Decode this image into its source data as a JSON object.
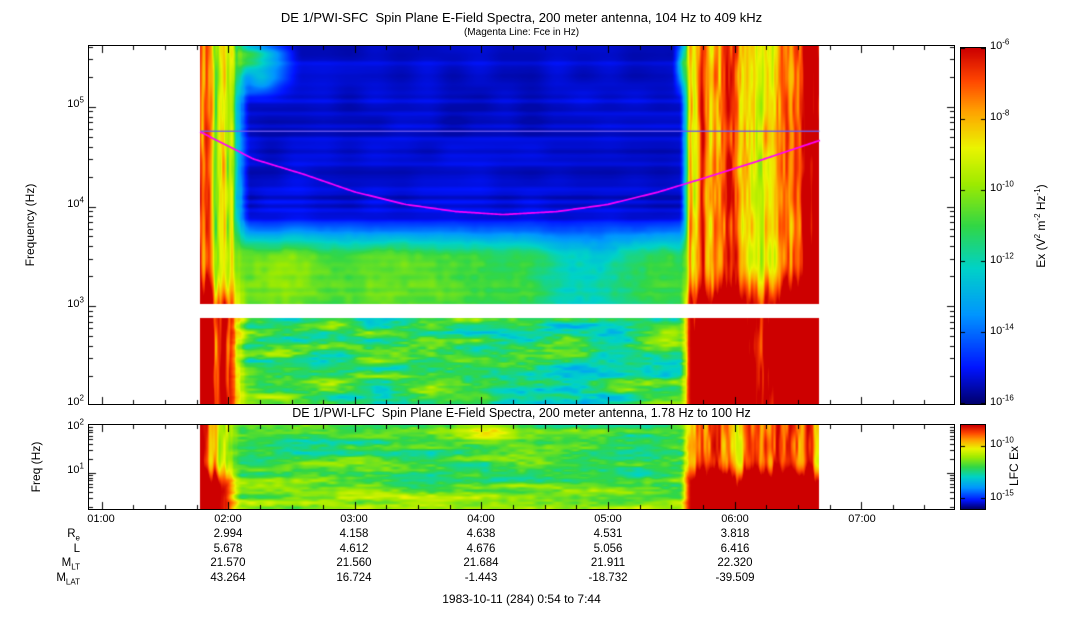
{
  "chart_data": {
    "type": "heatmap",
    "title": "DE 1/PWI-SFC  Spin Plane E-Field Spectra, 200 meter antenna, 104 Hz to 409 kHz",
    "subtitle": "(Magenta Line: Fce in Hz)",
    "footer": "1983-10-11 (284) 0:54 to 7:44",
    "time_axis": {
      "start": "0:54",
      "end": "7:44",
      "start_hours": 0.9,
      "end_hours": 7.7333,
      "data_start_hours": 1.78,
      "data_end_hours": 6.67,
      "ticks": [
        {
          "label": "01:00",
          "hours": 1
        },
        {
          "label": "02:00",
          "hours": 2
        },
        {
          "label": "03:00",
          "hours": 3
        },
        {
          "label": "04:00",
          "hours": 4
        },
        {
          "label": "05:00",
          "hours": 5
        },
        {
          "label": "06:00",
          "hours": 6
        },
        {
          "label": "07:00",
          "hours": 7
        }
      ]
    },
    "panels": [
      {
        "instrument": "SFC",
        "title": "DE 1/PWI-SFC  Spin Plane E-Field Spectra, 200 meter antenna, 104 Hz to 409 kHz",
        "ylabel": "Frequency (Hz)",
        "yscale": "log",
        "ylim_hz": [
          104,
          409000
        ],
        "yticks": [
          {
            "base": "10",
            "exp": "5"
          },
          {
            "base": "10",
            "exp": "4"
          },
          {
            "base": "10",
            "exp": "3"
          },
          {
            "base": "10",
            "exp": "2"
          }
        ],
        "colorbar": {
          "label_parts": [
            "Ex (V",
            "2",
            " m",
            "-2",
            " Hz",
            "-1",
            ")"
          ],
          "limits": [
            1e-16,
            1e-06
          ],
          "ticks": [
            {
              "base": "10",
              "exp": "-6"
            },
            {
              "base": "10",
              "exp": "-8"
            },
            {
              "base": "10",
              "exp": "-10"
            },
            {
              "base": "10",
              "exp": "-12"
            },
            {
              "base": "10",
              "exp": "-14"
            },
            {
              "base": "10",
              "exp": "-16"
            }
          ]
        },
        "features": {
          "gap_band_hz": [
            760,
            1050
          ],
          "quiet_green_band_hz": [
            1000,
            5000
          ],
          "artifact_line_hz": 57000,
          "aurora_left_hours": [
            1.78,
            2.18
          ],
          "aurora_right_hours": [
            5.58,
            6.67
          ]
        }
      },
      {
        "instrument": "LFC",
        "title": "DE 1/PWI-LFC  Spin Plane E-Field Spectra, 200 meter antenna, 1.78 Hz to 100 Hz",
        "ylabel": "Freq (Hz)",
        "yscale": "log",
        "ylim_hz": [
          1.78,
          100
        ],
        "yticks": [
          {
            "base": "10",
            "exp": "2"
          },
          {
            "base": "10",
            "exp": "1"
          }
        ],
        "colorbar": {
          "label": "LFC Ex",
          "limits": [
            1e-16,
            1e-08
          ],
          "ticks": [
            {
              "base": "10",
              "exp": "-10"
            },
            {
              "base": "10",
              "exp": "-15"
            }
          ]
        }
      }
    ],
    "fce_line": {
      "units": [
        "hours",
        "Hz"
      ],
      "points": [
        [
          1.78,
          56000
        ],
        [
          2.2,
          30000
        ],
        [
          2.6,
          21000
        ],
        [
          3.0,
          14000
        ],
        [
          3.4,
          10500
        ],
        [
          3.8,
          8900
        ],
        [
          4.17,
          8300
        ],
        [
          4.6,
          8900
        ],
        [
          5.0,
          10500
        ],
        [
          5.4,
          14000
        ],
        [
          5.8,
          20000
        ],
        [
          6.2,
          29000
        ],
        [
          6.67,
          46000
        ]
      ]
    },
    "ephemeris": {
      "tick_labels": [
        "02:00",
        "03:00",
        "04:00",
        "05:00",
        "06:00"
      ],
      "rows": [
        {
          "label": "R",
          "sub": "e",
          "values": [
            "2.994",
            "4.158",
            "4.638",
            "4.531",
            "3.818"
          ]
        },
        {
          "label": "L",
          "sub": "",
          "values": [
            "5.678",
            "4.612",
            "4.676",
            "5.056",
            "6.416"
          ]
        },
        {
          "label": "M",
          "sub": "LT",
          "values": [
            "21.570",
            "21.560",
            "21.684",
            "21.911",
            "22.320"
          ]
        },
        {
          "label": "M",
          "sub": "LAT",
          "values": [
            "43.264",
            "16.724",
            "-1.443",
            "-18.732",
            "-39.509"
          ]
        }
      ]
    }
  }
}
